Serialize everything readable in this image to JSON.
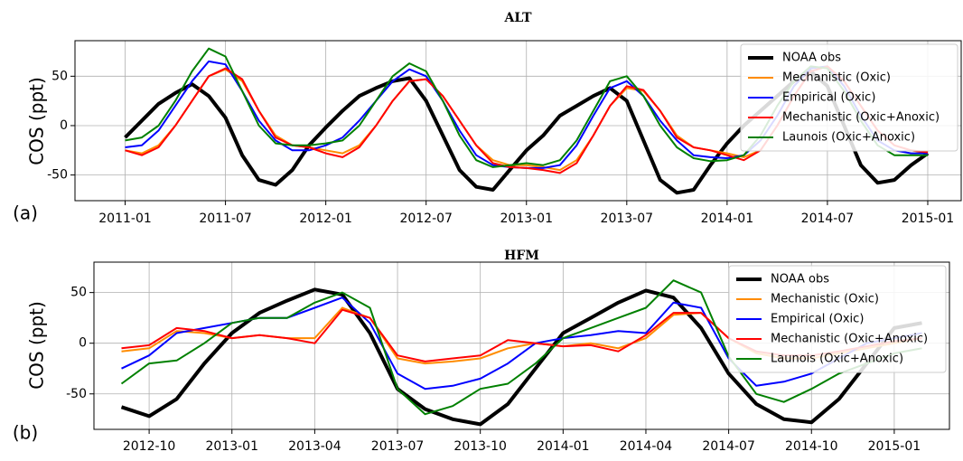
{
  "chart_data": [
    {
      "type": "line",
      "title": "ALT",
      "panel_label": "(a)",
      "ylabel": "COS (ppt)",
      "x": [
        "2011-01",
        "2011-02",
        "2011-03",
        "2011-04",
        "2011-05",
        "2011-06",
        "2011-07",
        "2011-08",
        "2011-09",
        "2011-10",
        "2011-11",
        "2011-12",
        "2012-01",
        "2012-02",
        "2012-03",
        "2012-04",
        "2012-05",
        "2012-06",
        "2012-07",
        "2012-08",
        "2012-09",
        "2012-10",
        "2012-11",
        "2012-12",
        "2013-01",
        "2013-02",
        "2013-03",
        "2013-04",
        "2013-05",
        "2013-06",
        "2013-07",
        "2013-08",
        "2013-09",
        "2013-10",
        "2013-11",
        "2013-12",
        "2014-01",
        "2014-02",
        "2014-03",
        "2014-04",
        "2014-05",
        "2014-06",
        "2014-07",
        "2014-08",
        "2014-09",
        "2014-10",
        "2014-11",
        "2014-12",
        "2015-01"
      ],
      "xlim": [
        "2010-10",
        "2015-03"
      ],
      "xticks": [
        "2011-01",
        "2011-07",
        "2012-01",
        "2012-07",
        "2013-01",
        "2013-07",
        "2014-01",
        "2014-07",
        "2015-01"
      ],
      "ylim": [
        -76,
        86
      ],
      "yticks": [
        -50,
        0,
        50
      ],
      "grid": true,
      "legend": "upper right",
      "series": [
        {
          "name": "NOAA obs",
          "color": "#000000",
          "values": [
            -12,
            5,
            22,
            33,
            42,
            30,
            8,
            -30,
            -55,
            -60,
            -45,
            -20,
            -2,
            15,
            30,
            38,
            45,
            48,
            25,
            -10,
            -45,
            -62,
            -65,
            -45,
            -25,
            -10,
            10,
            20,
            30,
            38,
            25,
            -15,
            -55,
            -68,
            -65,
            -40,
            -18,
            0,
            15,
            30,
            45,
            55,
            40,
            0,
            -40,
            -58,
            -55,
            -40,
            -28
          ]
        },
        {
          "name": "Mechanistic (Oxic)",
          "color": "#ff8c00",
          "values": [
            -25,
            -28,
            -20,
            0,
            25,
            50,
            57,
            45,
            15,
            -10,
            -20,
            -22,
            -25,
            -28,
            -20,
            0,
            25,
            45,
            47,
            30,
            5,
            -20,
            -35,
            -40,
            -40,
            -42,
            -45,
            -35,
            -10,
            20,
            38,
            35,
            15,
            -10,
            -22,
            -25,
            -28,
            -32,
            -25,
            0,
            30,
            55,
            60,
            45,
            20,
            -5,
            -20,
            -25,
            -28
          ]
        },
        {
          "name": "Empirical (Oxic)",
          "color": "#0000ff",
          "values": [
            -22,
            -20,
            -5,
            20,
            45,
            65,
            62,
            35,
            5,
            -15,
            -25,
            -25,
            -20,
            -12,
            5,
            25,
            45,
            57,
            50,
            25,
            -5,
            -30,
            -40,
            -42,
            -43,
            -43,
            -40,
            -20,
            10,
            38,
            45,
            30,
            5,
            -15,
            -30,
            -32,
            -33,
            -30,
            -15,
            10,
            40,
            58,
            60,
            40,
            10,
            -15,
            -25,
            -28,
            -28
          ]
        },
        {
          "name": "Mechanistic (Oxic+Anoxic)",
          "color": "#ff0000",
          "values": [
            -25,
            -30,
            -22,
            0,
            25,
            50,
            58,
            47,
            15,
            -12,
            -20,
            -22,
            -28,
            -32,
            -22,
            0,
            25,
            45,
            47,
            30,
            5,
            -20,
            -38,
            -42,
            -43,
            -45,
            -48,
            -38,
            -10,
            20,
            40,
            36,
            15,
            -12,
            -22,
            -25,
            -30,
            -35,
            -25,
            0,
            30,
            55,
            60,
            45,
            20,
            -5,
            -20,
            -25,
            -27
          ]
        },
        {
          "name": "Launois (Oxic+Anoxic)",
          "color": "#008000",
          "values": [
            -15,
            -12,
            0,
            25,
            55,
            78,
            70,
            35,
            0,
            -18,
            -20,
            -20,
            -18,
            -15,
            0,
            25,
            50,
            63,
            55,
            25,
            -10,
            -35,
            -42,
            -40,
            -38,
            -40,
            -35,
            -15,
            15,
            45,
            50,
            30,
            0,
            -22,
            -33,
            -36,
            -35,
            -30,
            -10,
            20,
            45,
            60,
            58,
            35,
            5,
            -20,
            -30,
            -30,
            -30
          ]
        }
      ]
    },
    {
      "type": "line",
      "title": "HFM",
      "panel_label": "(b)",
      "ylabel": "COS (ppt)",
      "x": [
        "2012-09",
        "2012-10",
        "2012-11",
        "2012-12",
        "2013-01",
        "2013-02",
        "2013-03",
        "2013-04",
        "2013-05",
        "2013-06",
        "2013-07",
        "2013-08",
        "2013-09",
        "2013-10",
        "2013-11",
        "2013-12",
        "2014-01",
        "2014-02",
        "2014-03",
        "2014-04",
        "2014-05",
        "2014-06",
        "2014-07",
        "2014-08",
        "2014-09",
        "2014-10",
        "2014-11",
        "2014-12",
        "2015-01",
        "2015-02"
      ],
      "xlim": [
        "2012-08",
        "2015-03"
      ],
      "xticks": [
        "2012-10",
        "2013-01",
        "2013-04",
        "2013-07",
        "2013-10",
        "2014-01",
        "2014-04",
        "2014-07",
        "2014-10",
        "2015-01"
      ],
      "ylim": [
        -85,
        80
      ],
      "yticks": [
        -50,
        0,
        50
      ],
      "grid": true,
      "legend": "upper right",
      "series": [
        {
          "name": "NOAA obs",
          "color": "#000000",
          "values": [
            -63,
            -72,
            -55,
            -20,
            10,
            30,
            42,
            53,
            48,
            10,
            -45,
            -65,
            -75,
            -80,
            -60,
            -25,
            10,
            25,
            40,
            52,
            45,
            15,
            -30,
            -60,
            -75,
            -78,
            -55,
            -20,
            15,
            20
          ]
        },
        {
          "name": "Mechanistic (Oxic)",
          "color": "#ff8c00",
          "values": [
            -8,
            -5,
            12,
            10,
            5,
            8,
            5,
            5,
            35,
            25,
            -15,
            -20,
            -18,
            -15,
            -5,
            0,
            -3,
            0,
            -5,
            5,
            28,
            30,
            5,
            -10,
            -15,
            -15,
            -10,
            -5,
            0,
            5
          ]
        },
        {
          "name": "Empirical (Oxic)",
          "color": "#0000ff",
          "values": [
            -25,
            -12,
            10,
            15,
            20,
            25,
            25,
            35,
            45,
            20,
            -30,
            -45,
            -42,
            -35,
            -20,
            0,
            5,
            8,
            12,
            10,
            40,
            35,
            -15,
            -42,
            -38,
            -30,
            -15,
            0,
            5,
            10
          ]
        },
        {
          "name": "Mechanistic (Oxic+Anoxic)",
          "color": "#ff0000",
          "values": [
            -5,
            -2,
            15,
            12,
            5,
            8,
            5,
            0,
            33,
            25,
            -12,
            -18,
            -15,
            -12,
            3,
            0,
            -3,
            -2,
            -8,
            8,
            30,
            30,
            5,
            -8,
            -12,
            -12,
            -8,
            -3,
            2,
            5
          ]
        },
        {
          "name": "Launois (Oxic+Anoxic)",
          "color": "#008000",
          "values": [
            -40,
            -20,
            -17,
            0,
            20,
            25,
            25,
            40,
            50,
            35,
            -45,
            -70,
            -62,
            -45,
            -40,
            -20,
            5,
            15,
            25,
            35,
            62,
            50,
            -13,
            -50,
            -58,
            -45,
            -30,
            -20,
            -10,
            -5
          ]
        }
      ]
    }
  ]
}
